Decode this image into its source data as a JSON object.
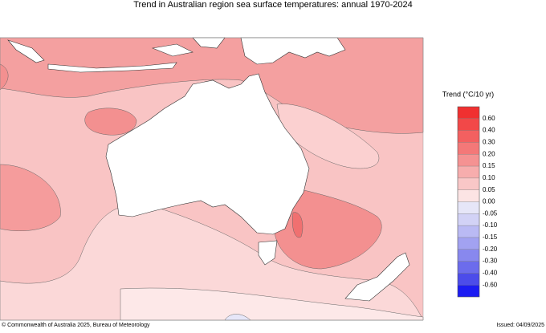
{
  "title": "Trend in Australian region sea surface temperatures: annual 1970-2024",
  "legend": {
    "title": "Trend (°C/10 yr)",
    "labels": [
      "0.60",
      "0.40",
      "0.30",
      "0.20",
      "0.15",
      "0.10",
      "0.05",
      "0.00",
      "-0.05",
      "-0.10",
      "-0.15",
      "-0.20",
      "-0.30",
      "-0.40",
      "-0.60"
    ],
    "colors": [
      "#f03030",
      "#f24848",
      "#f36060",
      "#f47878",
      "#f59292",
      "#f7adad",
      "#f9c7c7",
      "#fce4e4",
      "#e6e6f8",
      "#d2d2f6",
      "#babaf4",
      "#a2a2f1",
      "#8888ee",
      "#6c6cec",
      "#4c4cea",
      "#1c1cf2"
    ]
  },
  "footer": {
    "credit": "© Commonwealth of Australia 2025, Bureau of Meteorology",
    "issued": "Issued: 04/09/2025"
  }
}
